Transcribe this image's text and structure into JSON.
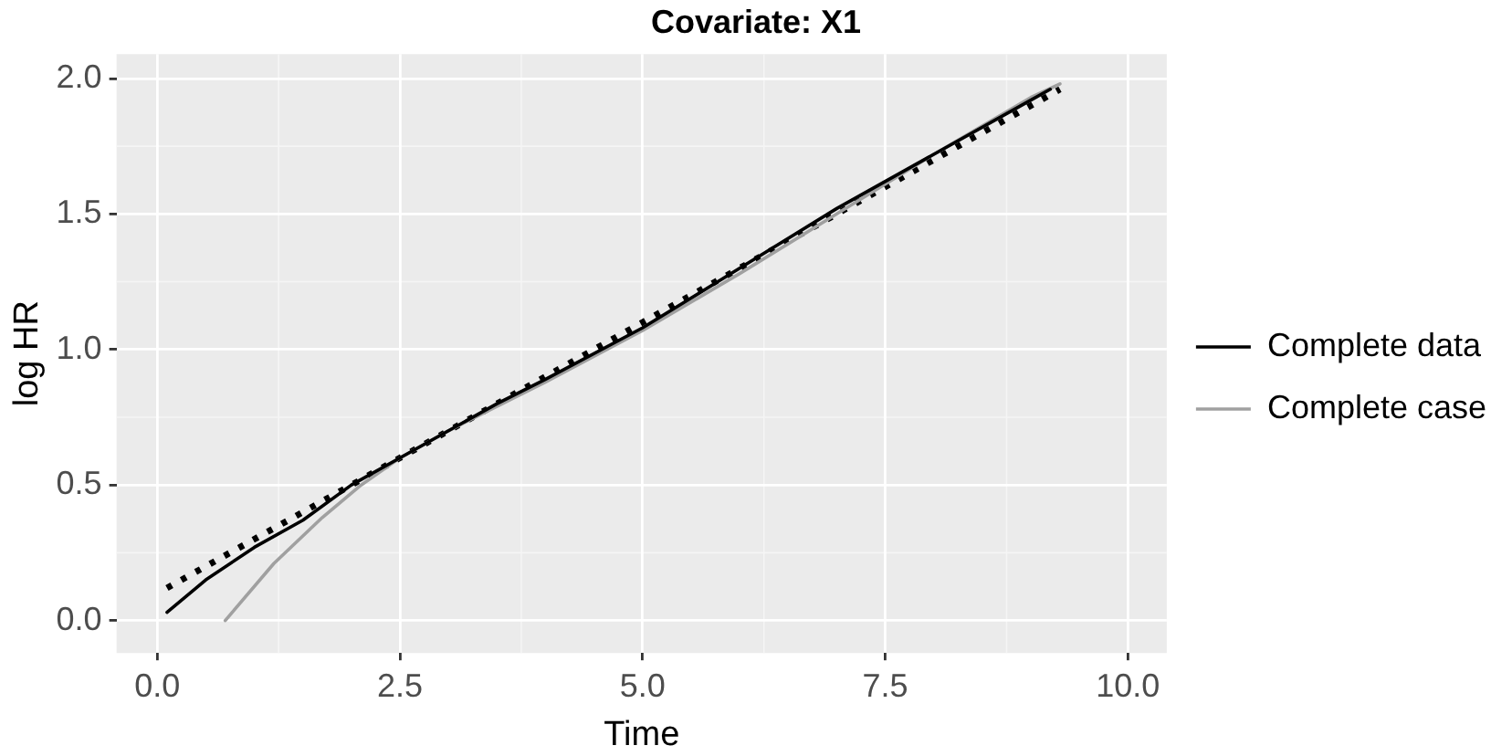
{
  "chart_data": {
    "type": "line",
    "title": "Covariate: X1",
    "xlabel": "Time",
    "ylabel": "log HR",
    "xlim": [
      -0.42,
      10.4
    ],
    "xticks": [
      {
        "value": 0,
        "label": "0.0"
      },
      2.5,
      {
        "value": 5,
        "label": "5.0"
      },
      7.5,
      {
        "value": 10,
        "label": "10.0"
      }
    ],
    "ylim": [
      -0.12,
      2.09
    ],
    "yticks": [
      {
        "value": 0,
        "label": "0.0"
      },
      0.5,
      {
        "value": 1,
        "label": "1.0"
      },
      1.5,
      {
        "value": 2,
        "label": "2.0"
      }
    ],
    "grid": true,
    "legend": "right",
    "marker": "none",
    "series": [
      {
        "name": "Complete data",
        "color": "#000000",
        "x": [
          0.1,
          0.5,
          1,
          1.5,
          2,
          2.5,
          3,
          3.5,
          4,
          5,
          6,
          7,
          8,
          9,
          9.2
        ],
        "values": [
          0.03,
          0.15,
          0.27,
          0.37,
          0.5,
          0.6,
          0.7,
          0.8,
          0.89,
          1.08,
          1.3,
          1.52,
          1.72,
          1.92,
          1.96
        ]
      },
      {
        "name": "Complete case",
        "color": "#a0a0a0",
        "x": [
          0.7,
          1.2,
          1.7,
          2.1,
          2.5,
          3,
          4,
          5,
          6,
          7,
          8,
          9,
          9.3
        ],
        "values": [
          0,
          0.21,
          0.38,
          0.5,
          0.6,
          0.7,
          0.88,
          1.07,
          1.28,
          1.5,
          1.72,
          1.93,
          1.98
        ]
      },
      {
        "color": "#000000",
        "line_style": "dotted",
        "x": [
          0.1,
          2.5,
          5,
          7.5,
          9.3
        ],
        "values": [
          0.12,
          0.6,
          1.1,
          1.6,
          1.96
        ]
      }
    ]
  }
}
